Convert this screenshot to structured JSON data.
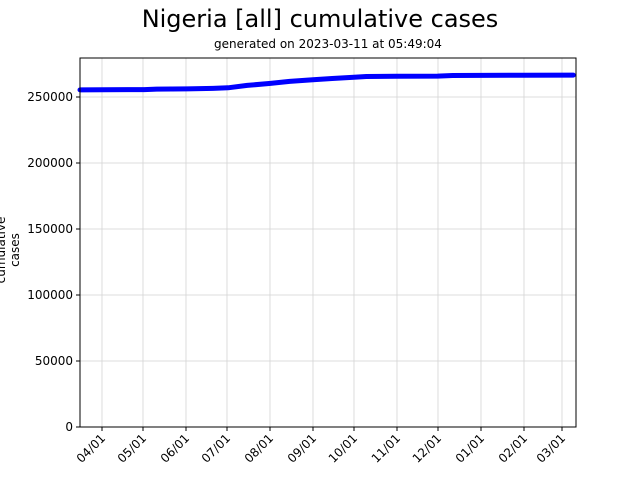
{
  "header": {
    "title": "Nigeria [all] cumulative cases",
    "subtitle": "generated on 2023-03-11 at 05:49:04"
  },
  "axes": {
    "ylabel": "cumulative cases",
    "yticks": [
      "0",
      "50000",
      "100000",
      "150000",
      "200000",
      "250000"
    ],
    "xticks": [
      "04/01",
      "05/01",
      "06/01",
      "07/01",
      "08/01",
      "09/01",
      "10/01",
      "11/01",
      "12/01",
      "01/01",
      "02/01",
      "03/01"
    ]
  },
  "colors": {
    "line": "#0000ff",
    "grid": "#d3d3d3",
    "axis": "#000000"
  },
  "chart_data": {
    "type": "line",
    "title": "Nigeria [all] cumulative cases",
    "subtitle": "generated on 2023-03-11 at 05:49:04",
    "xlabel": "",
    "ylabel": "cumulative cases",
    "ylim": [
      0,
      280000
    ],
    "grid": true,
    "legend": null,
    "x": [
      "2022-03-15",
      "2022-04-01",
      "2022-05-01",
      "2022-05-10",
      "2022-06-01",
      "2022-06-20",
      "2022-07-01",
      "2022-07-15",
      "2022-08-01",
      "2022-08-15",
      "2022-09-01",
      "2022-09-15",
      "2022-10-01",
      "2022-10-10",
      "2022-11-01",
      "2022-12-01",
      "2022-12-12",
      "2023-01-01",
      "2023-02-01",
      "2023-03-10"
    ],
    "series": [
      {
        "name": "cumulative cases",
        "values": [
          255400,
          255500,
          255600,
          256000,
          256100,
          256500,
          257000,
          258800,
          260300,
          261800,
          263000,
          264000,
          264900,
          265500,
          265700,
          265800,
          266300,
          266400,
          266500,
          266600
        ]
      }
    ]
  }
}
